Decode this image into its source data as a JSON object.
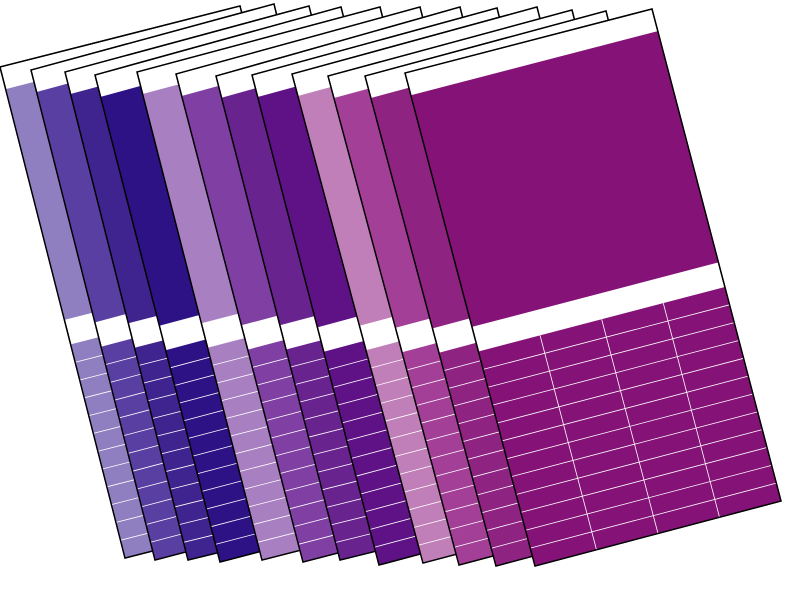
{
  "background": "#ffffff",
  "outline_color": "#000000",
  "band_color": "#ffffff",
  "grid_line_color": "#ffffff",
  "cards": [
    {
      "color": "#8f7fc0"
    },
    {
      "color": "#5a3fa3"
    },
    {
      "color": "#3f238f"
    },
    {
      "color": "#2d1285"
    },
    {
      "color": "#a87fc0"
    },
    {
      "color": "#7f3fa3"
    },
    {
      "color": "#69238f"
    },
    {
      "color": "#5e1285"
    },
    {
      "color": "#c07fb8"
    },
    {
      "color": "#a33f96"
    },
    {
      "color": "#8f2382"
    },
    {
      "color": "#851276"
    }
  ]
}
